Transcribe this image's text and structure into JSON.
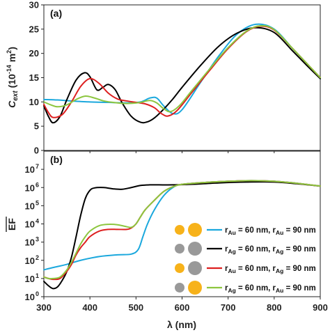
{
  "chart_data": [
    {
      "panel": "(a)",
      "type": "line",
      "xlim": [
        300,
        900
      ],
      "ylim": [
        0,
        30
      ],
      "xlabel": "",
      "ylabel": {
        "main": "C",
        "sub": "ext",
        "unit_pre": " (10",
        "unit_sup": "-14",
        "unit_post": " m",
        "unit_sup2": "2",
        "unit_end": ")"
      },
      "xticks": [
        300,
        400,
        500,
        600,
        700,
        800,
        900
      ],
      "yticks": [
        0,
        5,
        10,
        15,
        20,
        25,
        30
      ],
      "grid": false,
      "series": [
        {
          "name": "rAu = 60 nm, rAu = 90 nm",
          "color": "#1ba8dd",
          "x": [
            300,
            330,
            360,
            400,
            440,
            480,
            510,
            530,
            545,
            560,
            580,
            600,
            640,
            680,
            720,
            760,
            800,
            840,
            870,
            900
          ],
          "y": [
            10.5,
            10.4,
            10.2,
            10.0,
            9.9,
            9.8,
            10.0,
            10.8,
            10.8,
            9.2,
            7.6,
            8.4,
            14.0,
            19.5,
            24.0,
            26.0,
            25.0,
            21.0,
            18.0,
            14.8
          ]
        },
        {
          "name": "rAg = 60 nm, rAg = 90 nm",
          "color": "#000000",
          "x": [
            300,
            310,
            320,
            335,
            350,
            370,
            388,
            400,
            415,
            428,
            440,
            455,
            470,
            490,
            510,
            525,
            540,
            560,
            580,
            600,
            640,
            680,
            720,
            760,
            800,
            840,
            870,
            900
          ],
          "y": [
            9.2,
            7.0,
            5.7,
            7.0,
            10.5,
            14.5,
            16.0,
            15.2,
            12.5,
            13.0,
            13.6,
            12.5,
            9.8,
            7.0,
            5.8,
            5.9,
            6.7,
            8.5,
            10.6,
            13.0,
            17.5,
            21.5,
            24.2,
            25.3,
            24.3,
            20.5,
            17.6,
            14.8
          ]
        },
        {
          "name": "rAu = 60 nm, rAg = 90 nm",
          "color": "#dd1f1f",
          "x": [
            300,
            310,
            320,
            340,
            360,
            380,
            400,
            420,
            440,
            460,
            480,
            500,
            520,
            540,
            555,
            570,
            590,
            620,
            660,
            700,
            740,
            770,
            800,
            840,
            870,
            900
          ],
          "y": [
            9.5,
            7.8,
            6.8,
            7.4,
            10.0,
            13.2,
            14.8,
            13.8,
            11.8,
            10.6,
            10.2,
            9.9,
            9.6,
            8.8,
            7.6,
            7.1,
            8.3,
            11.8,
            16.5,
            21.0,
            24.5,
            25.6,
            24.8,
            21.0,
            18.0,
            15.0
          ]
        },
        {
          "name": "rAg = 60 nm, rAu = 90 nm",
          "color": "#8dc63f",
          "x": [
            300,
            315,
            330,
            350,
            370,
            390,
            410,
            430,
            450,
            470,
            490,
            510,
            530,
            545,
            560,
            575,
            595,
            620,
            660,
            700,
            740,
            770,
            800,
            840,
            870,
            900
          ],
          "y": [
            10.0,
            9.4,
            9.0,
            9.4,
            10.5,
            11.2,
            10.8,
            10.2,
            9.9,
            9.7,
            9.7,
            9.9,
            10.3,
            9.8,
            8.6,
            8.0,
            9.3,
            12.2,
            16.8,
            21.2,
            24.6,
            25.7,
            24.9,
            21.0,
            18.0,
            15.0
          ]
        }
      ]
    },
    {
      "panel": "(b)",
      "type": "line",
      "xlim": [
        300,
        900
      ],
      "ylim": [
        1,
        100000000
      ],
      "yscale": "log",
      "xlabel": "λ (nm)",
      "ylabel": "EF",
      "xticks": [
        300,
        400,
        500,
        600,
        700,
        800,
        900
      ],
      "yticks": [
        1,
        10,
        100,
        1000,
        10000,
        100000,
        1000000,
        10000000
      ],
      "yticklabels": [
        {
          "b": "10",
          "e": "0"
        },
        {
          "b": "10",
          "e": "1"
        },
        {
          "b": "10",
          "e": "2"
        },
        {
          "b": "10",
          "e": "3"
        },
        {
          "b": "10",
          "e": "4"
        },
        {
          "b": "10",
          "e": "5"
        },
        {
          "b": "10",
          "e": "6"
        },
        {
          "b": "10",
          "e": "7"
        }
      ],
      "grid": false,
      "legend_position": "lower-right",
      "series": [
        {
          "name": "rAu = 60 nm, rAu = 90 nm",
          "color": "#1ba8dd",
          "x": [
            300,
            320,
            350,
            380,
            420,
            460,
            490,
            505,
            515,
            525,
            540,
            560,
            580,
            600,
            650,
            700,
            750,
            800,
            850,
            900
          ],
          "y": [
            30,
            40,
            60,
            100,
            160,
            200,
            220,
            400,
            2000,
            10000,
            60000,
            350000,
            1000000,
            1500000,
            1900000,
            2200000,
            2400000,
            2200000,
            1700000,
            1200000
          ]
        },
        {
          "name": "rAg = 60 nm, rAg = 90 nm",
          "color": "#000000",
          "x": [
            300,
            310,
            320,
            330,
            340,
            350,
            360,
            370,
            380,
            390,
            400,
            410,
            430,
            450,
            470,
            490,
            510,
            530,
            550,
            580,
            620,
            680,
            740,
            800,
            850,
            900
          ],
          "y": [
            7,
            4,
            2.8,
            3.5,
            8,
            25,
            150,
            2000,
            30000,
            250000,
            700000,
            950000,
            1000000,
            850000,
            800000,
            1000000,
            1300000,
            1400000,
            1400000,
            1400000,
            1500000,
            1800000,
            2000000,
            2000000,
            1600000,
            1200000
          ]
        },
        {
          "name": "rAu = 60 nm, rAg = 90 nm",
          "color": "#dd1f1f",
          "x": [
            300,
            310,
            320,
            335,
            350,
            360,
            370,
            380,
            390,
            400,
            420,
            440,
            460,
            480,
            490,
            500,
            510,
            520,
            540,
            560,
            580,
            600,
            650,
            700,
            750,
            800,
            850,
            900
          ],
          "y": [
            12,
            10,
            9,
            10,
            25,
            60,
            200,
            500,
            1000,
            2000,
            4000,
            5000,
            5000,
            5000,
            6000,
            10000,
            25000,
            60000,
            200000,
            600000,
            1100000,
            1500000,
            1900000,
            2200000,
            2400000,
            2200000,
            1700000,
            1200000
          ]
        },
        {
          "name": "rAg = 60 nm, rAu = 90 nm",
          "color": "#8dc63f",
          "x": [
            300,
            310,
            320,
            335,
            350,
            360,
            370,
            380,
            390,
            400,
            420,
            440,
            460,
            480,
            490,
            500,
            510,
            520,
            540,
            560,
            580,
            600,
            650,
            700,
            750,
            800,
            850,
            900
          ],
          "y": [
            12,
            10,
            10,
            12,
            30,
            80,
            250,
            800,
            2000,
            4000,
            8000,
            9500,
            9000,
            7000,
            6500,
            10000,
            25000,
            60000,
            200000,
            600000,
            1100000,
            1500000,
            1900000,
            2200000,
            2400000,
            2200000,
            1700000,
            1200000
          ]
        }
      ],
      "legend": [
        {
          "label_parts": [
            {
              "t": "r",
              "s": ""
            },
            {
              "t": "Au",
              "s": "sub"
            },
            {
              "t": " = 60 nm, r",
              "s": ""
            },
            {
              "t": "Au",
              "s": "sub"
            },
            {
              "t": " = 90 nm",
              "s": ""
            }
          ],
          "small_sphere": "gold",
          "large_sphere": "gold",
          "color": "#1ba8dd"
        },
        {
          "label_parts": [
            {
              "t": "r",
              "s": ""
            },
            {
              "t": "Ag",
              "s": "sub"
            },
            {
              "t": " = 60 nm, r",
              "s": ""
            },
            {
              "t": "Ag",
              "s": "sub"
            },
            {
              "t": " = 90 nm",
              "s": ""
            }
          ],
          "small_sphere": "silver",
          "large_sphere": "silver",
          "color": "#000000"
        },
        {
          "label_parts": [
            {
              "t": "r",
              "s": ""
            },
            {
              "t": "Au",
              "s": "sub"
            },
            {
              "t": " = 60 nm, r",
              "s": ""
            },
            {
              "t": "Ag",
              "s": "sub"
            },
            {
              "t": " = 90 nm",
              "s": ""
            }
          ],
          "small_sphere": "gold",
          "large_sphere": "silver",
          "color": "#dd1f1f"
        },
        {
          "label_parts": [
            {
              "t": "r",
              "s": ""
            },
            {
              "t": "Ag",
              "s": "sub"
            },
            {
              "t": " = 60 nm, r",
              "s": ""
            },
            {
              "t": "Au",
              "s": "sub"
            },
            {
              "t": " = 90 nm",
              "s": ""
            }
          ],
          "small_sphere": "silver",
          "large_sphere": "gold",
          "color": "#8dc63f"
        }
      ]
    }
  ],
  "colors": {
    "gold": "#f7b21a",
    "silver": "#999999"
  }
}
